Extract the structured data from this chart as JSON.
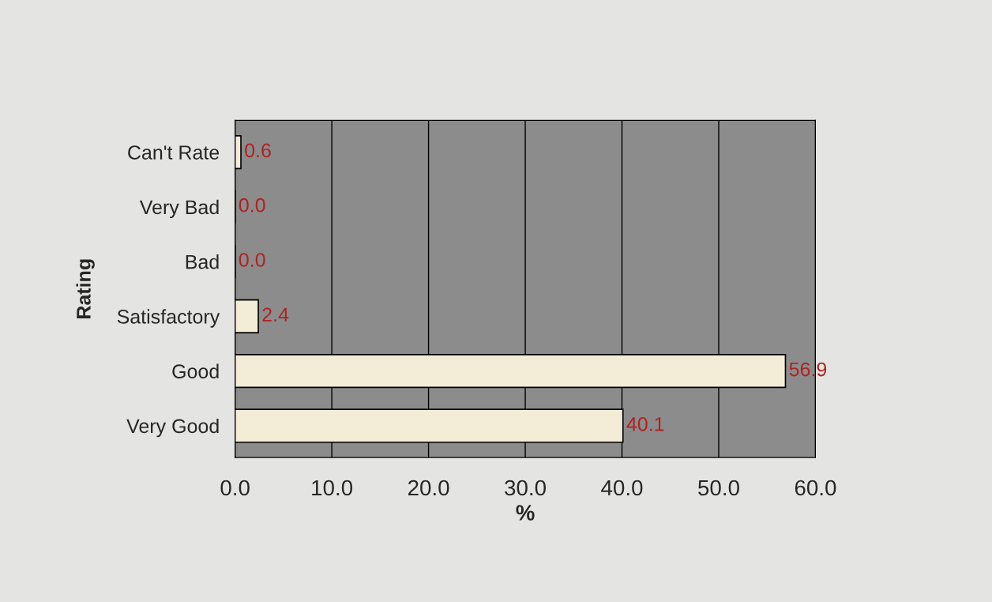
{
  "chart_data": {
    "type": "bar",
    "orientation": "horizontal",
    "categories": [
      "Can't Rate",
      "Very Bad",
      "Bad",
      "Satisfactory",
      "Good",
      "Very Good"
    ],
    "values": [
      0.6,
      0.0,
      0.0,
      2.4,
      56.9,
      40.1
    ],
    "value_labels": [
      "0.6",
      "0.0",
      "0.0",
      "2.4",
      "56.9",
      "40.1"
    ],
    "color": "#f3ecd6",
    "xlabel": "%",
    "ylabel": "Rating",
    "xlim": [
      0,
      60
    ],
    "xticks": [
      {
        "value": 0,
        "label": "0.0"
      },
      {
        "value": 10,
        "label": "10.0"
      },
      {
        "value": 20,
        "label": "20.0"
      },
      {
        "value": 30,
        "label": "30.0"
      },
      {
        "value": 40,
        "label": "40.0"
      },
      {
        "value": 50,
        "label": "50.0"
      },
      {
        "value": 60,
        "label": "60.0"
      }
    ],
    "grid": "x"
  }
}
